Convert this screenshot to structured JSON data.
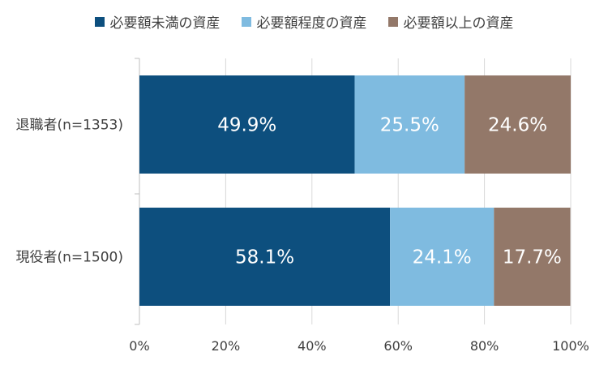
{
  "chart_data": {
    "type": "bar",
    "orientation": "horizontal",
    "stacked": true,
    "categories": [
      "退職者(n=1353)",
      "現役者(n=1500)"
    ],
    "series": [
      {
        "name": "必要額未満の資産",
        "values": [
          49.9,
          58.1
        ],
        "labels": [
          "49.9%",
          "58.1%"
        ],
        "color": "#0d4f7e"
      },
      {
        "name": "必要額程度の資産",
        "values": [
          25.5,
          24.1
        ],
        "labels": [
          "25.5%",
          "24.1%"
        ],
        "color": "#7fbbe0"
      },
      {
        "name": "必要額以上の資産",
        "values": [
          24.6,
          17.7
        ],
        "labels": [
          "24.6%",
          "17.7%"
        ],
        "color": "#937869"
      }
    ],
    "xlim": [
      0,
      100
    ],
    "x_ticks": [
      "0%",
      "20%",
      "40%",
      "60%",
      "80%",
      "100%"
    ],
    "grid": true,
    "legend_position": "top"
  }
}
